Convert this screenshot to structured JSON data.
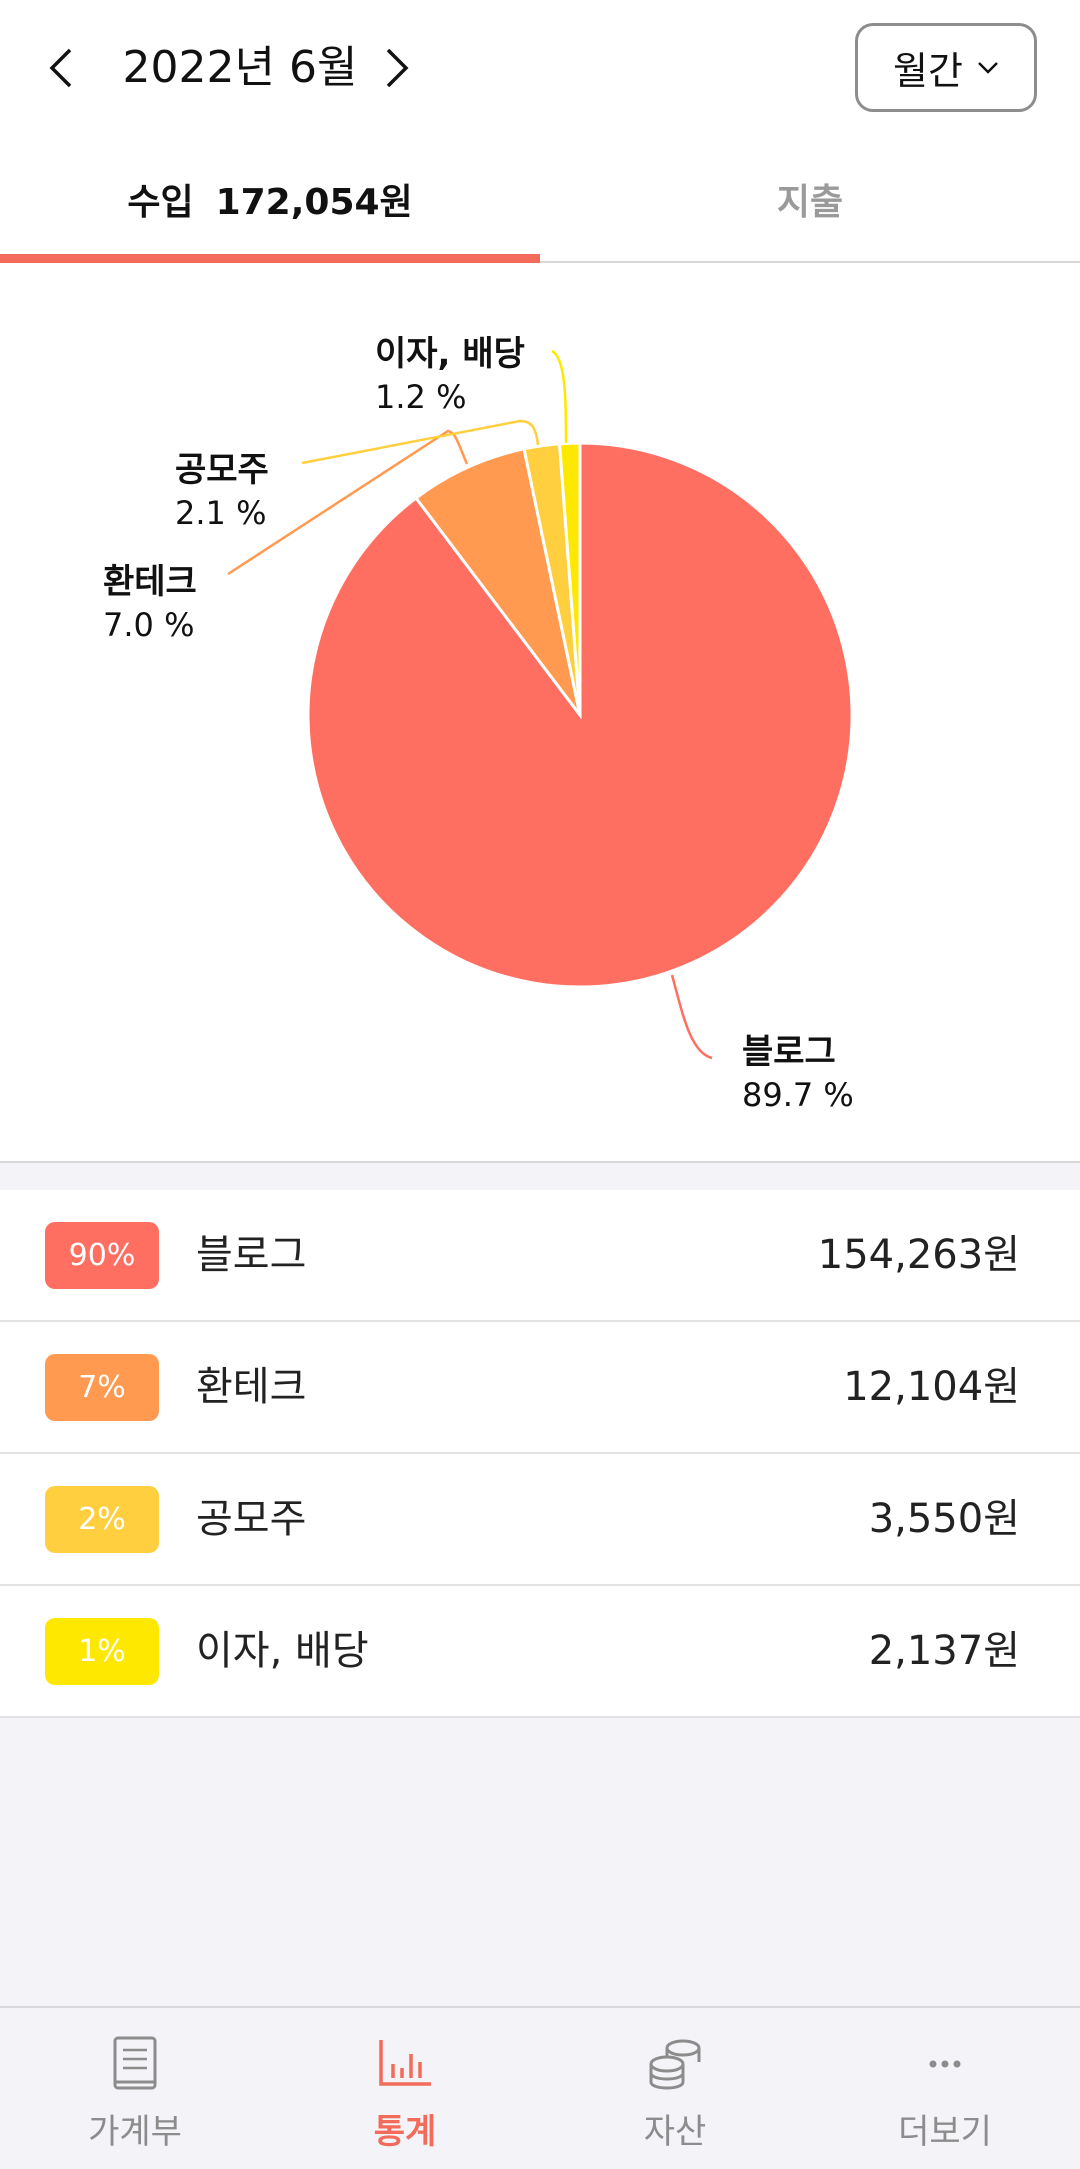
{
  "header": {
    "month": "2022년 6월",
    "period": "월간"
  },
  "tabs": {
    "income_label": "수입",
    "income_amount": "172,054원",
    "expense_label": "지출"
  },
  "colors": {
    "accent": "#f26b5b",
    "blog": "#ff6f61",
    "fintech": "#ff9a50",
    "contest": "#ffcf40",
    "interest": "#ffe800"
  },
  "chart_data": {
    "type": "pie",
    "slices": [
      {
        "name": "블로그",
        "percent": 89.7,
        "label": "89.7 %",
        "color": "#ff6f61"
      },
      {
        "name": "환테크",
        "percent": 7.0,
        "label": "7.0 %",
        "color": "#ff9a50"
      },
      {
        "name": "공모주",
        "percent": 2.1,
        "label": "2.1 %",
        "color": "#ffcf40"
      },
      {
        "name": "이자, 배당",
        "percent": 1.2,
        "label": "1.2 %",
        "color": "#ffe800"
      }
    ]
  },
  "list": [
    {
      "badge": "90%",
      "name": "블로그",
      "amount": "154,263원",
      "color": "#ff6f61"
    },
    {
      "badge": "7%",
      "name": "환테크",
      "amount": "12,104원",
      "color": "#ff9a50"
    },
    {
      "badge": "2%",
      "name": "공모주",
      "amount": "3,550원",
      "color": "#ffcf40"
    },
    {
      "badge": "1%",
      "name": "이자, 배당",
      "amount": "2,137원",
      "color": "#ffe800"
    }
  ],
  "bottom_nav": [
    {
      "label": "가계부",
      "icon": "book-icon"
    },
    {
      "label": "통계",
      "icon": "bar-chart-icon"
    },
    {
      "label": "자산",
      "icon": "coins-icon"
    },
    {
      "label": "더보기",
      "icon": "more-icon"
    }
  ]
}
